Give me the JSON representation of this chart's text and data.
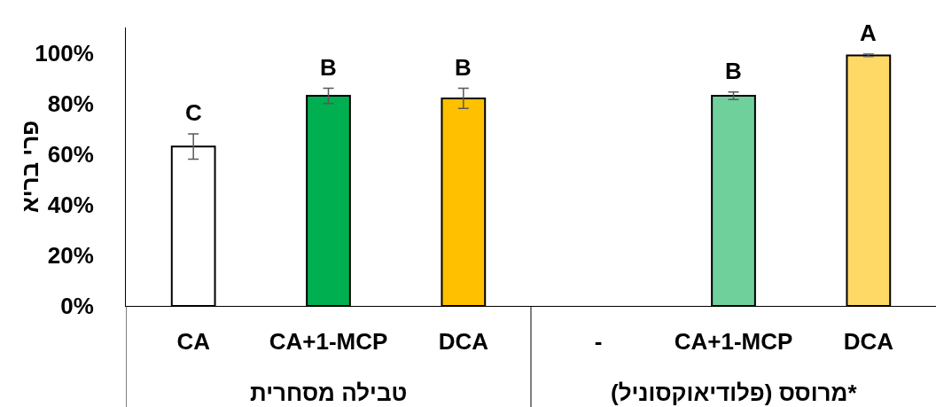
{
  "chart_data": {
    "type": "bar",
    "categories": [
      "CA",
      "CA+1-MCP",
      "DCA",
      "-",
      "CA+1-MCP",
      "DCA"
    ],
    "values": [
      63,
      83,
      82,
      null,
      83,
      99
    ],
    "colors": [
      "#ffffff",
      "#00b050",
      "#ffc000",
      null,
      "#6fd09c",
      "#ffd966"
    ],
    "errors": [
      5,
      3,
      4,
      null,
      1.5,
      0.5
    ],
    "value_labels": [
      "C",
      "B",
      "B",
      null,
      "B",
      "A"
    ],
    "ylabel": "פרי בריא",
    "annotations": [
      "טבילה מסחרית",
      "*מרוסס (פלודיאוקסוניל)"
    ],
    "ylim": [
      0,
      110
    ],
    "yticks": [
      {
        "value": 0,
        "label": "0%"
      },
      {
        "value": 20,
        "label": "20%"
      },
      {
        "value": 40,
        "label": "40%"
      },
      {
        "value": 60,
        "label": "60%"
      },
      {
        "value": 80,
        "label": "80%"
      },
      {
        "value": 100,
        "label": "100%"
      }
    ],
    "grid": false
  }
}
